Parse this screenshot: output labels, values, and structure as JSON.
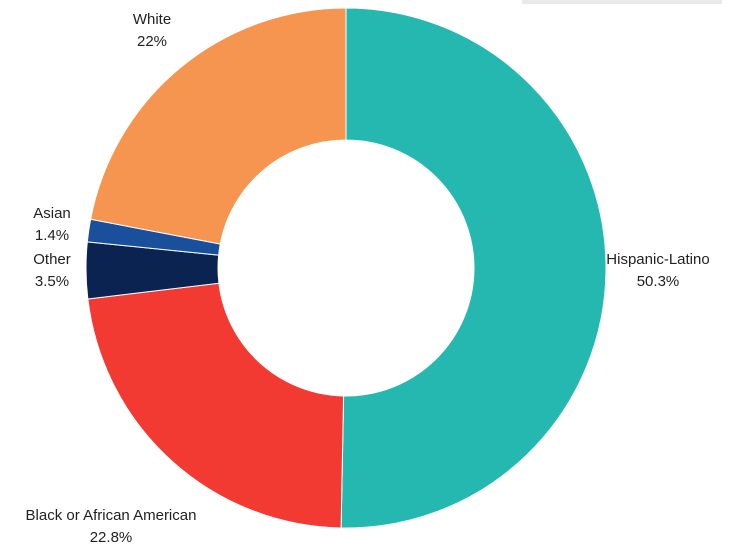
{
  "chart_data": {
    "type": "pie",
    "donut": true,
    "categories": [
      "Hispanic-Latino",
      "Black or African American",
      "Other",
      "Asian",
      "White"
    ],
    "values": [
      50.3,
      22.8,
      3.5,
      1.4,
      22
    ],
    "value_labels": [
      "50.3%",
      "22.8%",
      "3.5%",
      "1.4%",
      "22%"
    ],
    "colors": [
      "#24b8b0",
      "#f23a32",
      "#0b2350",
      "#1a4f9c",
      "#f5954f"
    ],
    "start_angle_deg": 0,
    "direction": "clockwise",
    "legend": "none",
    "title": ""
  }
}
